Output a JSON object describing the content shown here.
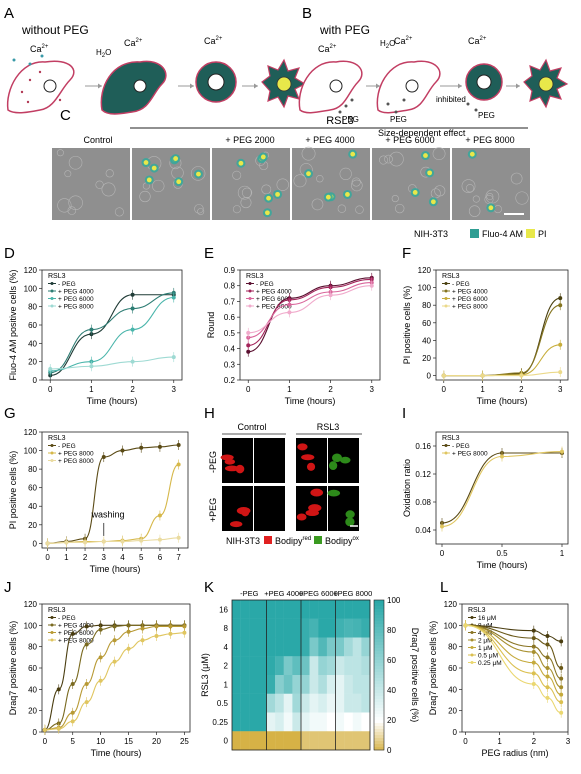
{
  "panel_letters": [
    "A",
    "B",
    "C",
    "D",
    "E",
    "F",
    "G",
    "H",
    "I",
    "J",
    "K",
    "L"
  ],
  "panelA": {
    "title": "without PEG",
    "ca": "Ca",
    "ca_sup": "2+",
    "h2o": "H",
    "h2o_sub": "2",
    "h2o_o": "O"
  },
  "panelB": {
    "title": "with PEG",
    "inhibited": "inhibited",
    "size_effect": "Size-dependent effect",
    "peg_label": "PEG"
  },
  "panelC": {
    "group": "RSL3",
    "columns": [
      "Control",
      "",
      "+ PEG 2000",
      "+ PEG 4000",
      "+ PEG 6000",
      "+ PEG 8000"
    ],
    "legend_cell": "NIH-3T3",
    "legend_dye1": "Fluo-4 AM",
    "legend_dye2": "PI",
    "color_fluo": "#3aa79b",
    "color_pi": "#e0e04a"
  },
  "panelH": {
    "col_control": "Control",
    "col_rsl3": "RSL3",
    "row1": "-PEG",
    "row2": "+PEG",
    "legend_cell": "NIH-3T3",
    "legend_red": "Bodipy",
    "legend_red_sup": "red",
    "legend_green": "Bodipy",
    "legend_green_sup": "ox"
  },
  "chart_data": [
    {
      "id": "D",
      "type": "line",
      "title": "RSL3",
      "ylabel": "Fluo-4 AM positive cells (%)",
      "xlabel": "Time (hours)",
      "x": [
        0,
        1,
        2,
        3
      ],
      "xlim": [
        -0.2,
        3.2
      ],
      "ylim": [
        0,
        120
      ],
      "yticks": [
        0,
        20,
        40,
        60,
        80,
        100,
        120
      ],
      "xticks": [
        0,
        1,
        2,
        3
      ],
      "series": [
        {
          "name": "- PEG",
          "color": "#1f3b36",
          "values": [
            5,
            50,
            93,
            93
          ]
        },
        {
          "name": "+ PEG 4000",
          "color": "#2e7d74",
          "values": [
            8,
            55,
            78,
            95
          ]
        },
        {
          "name": "+ PEG 6000",
          "color": "#4ab5ab",
          "values": [
            10,
            20,
            55,
            90
          ]
        },
        {
          "name": "+ PEG 8000",
          "color": "#9edad3",
          "values": [
            12,
            15,
            20,
            25
          ]
        }
      ]
    },
    {
      "id": "E",
      "type": "line",
      "title": "RSL3",
      "ylabel": "Round",
      "xlabel": "Time (hours)",
      "x": [
        0,
        1,
        2,
        3
      ],
      "xlim": [
        -0.2,
        3.2
      ],
      "ylim": [
        0.2,
        0.9
      ],
      "yticks": [
        0.2,
        0.3,
        0.4,
        0.5,
        0.6,
        0.7,
        0.8,
        0.9
      ],
      "xticks": [
        0,
        1,
        2,
        3
      ],
      "series": [
        {
          "name": "- PEG",
          "color": "#5a1030",
          "values": [
            0.38,
            0.72,
            0.8,
            0.85
          ]
        },
        {
          "name": "+ PEG 4000",
          "color": "#a3245a",
          "values": [
            0.42,
            0.71,
            0.79,
            0.84
          ]
        },
        {
          "name": "+ PEG 6000",
          "color": "#d9669b",
          "values": [
            0.47,
            0.68,
            0.76,
            0.82
          ]
        },
        {
          "name": "+ PEG 8000",
          "color": "#f0aacb",
          "values": [
            0.5,
            0.63,
            0.74,
            0.8
          ]
        }
      ]
    },
    {
      "id": "F",
      "type": "line",
      "title": "RSL3",
      "ylabel": "PI positive cells (%)",
      "xlabel": "Time (hours)",
      "x": [
        0,
        1,
        2,
        3
      ],
      "xlim": [
        -0.2,
        3.2
      ],
      "ylim": [
        -5,
        120
      ],
      "yticks": [
        0,
        20,
        40,
        60,
        80,
        100,
        120
      ],
      "xticks": [
        0,
        1,
        2,
        3
      ],
      "series": [
        {
          "name": "- PEG",
          "color": "#4a4010",
          "values": [
            0,
            0,
            2,
            88
          ]
        },
        {
          "name": "+ PEG 4000",
          "color": "#857520",
          "values": [
            0,
            0,
            3,
            80
          ]
        },
        {
          "name": "+ PEG 6000",
          "color": "#c7ad3a",
          "values": [
            0,
            0,
            1,
            35
          ]
        },
        {
          "name": "+ PEG 8000",
          "color": "#ebd98a",
          "values": [
            0,
            0,
            0,
            4
          ]
        }
      ]
    },
    {
      "id": "G",
      "type": "line",
      "title": "RSL3",
      "ylabel": "PI positive cells (%)",
      "xlabel": "Time (hours)",
      "annotation": "washing",
      "x": [
        0,
        1,
        2,
        3,
        4,
        5,
        6,
        7
      ],
      "xlim": [
        -0.3,
        7.5
      ],
      "ylim": [
        -5,
        120
      ],
      "yticks": [
        0,
        20,
        40,
        60,
        80,
        100,
        120
      ],
      "xticks": [
        0,
        1,
        2,
        3,
        4,
        5,
        6,
        7
      ],
      "series": [
        {
          "name": "- PEG",
          "color": "#5a4a15",
          "values": [
            0,
            2,
            5,
            93,
            100,
            103,
            104,
            106
          ]
        },
        {
          "name": "+ PEG 8000",
          "color": "#d6b84a",
          "values": [
            0,
            1,
            2,
            2,
            3,
            5,
            30,
            85
          ]
        },
        {
          "name": "+ PEG 8000",
          "color": "#eadba0",
          "values": [
            0,
            1,
            1,
            2,
            2,
            3,
            4,
            6
          ]
        }
      ]
    },
    {
      "id": "I",
      "type": "line",
      "title": "RSL3",
      "ylabel": "Oxidation ratio",
      "xlabel": "Time (hours)",
      "x": [
        0,
        0.5,
        1
      ],
      "xlim": [
        -0.05,
        1.05
      ],
      "ylim": [
        0.02,
        0.18
      ],
      "yticks": [
        0.04,
        0.08,
        0.12,
        0.16
      ],
      "xticks": [
        0,
        0.5,
        1
      ],
      "series": [
        {
          "name": "- PEG",
          "color": "#5a4a15",
          "values": [
            0.05,
            0.15,
            0.15
          ]
        },
        {
          "name": "+ PEG 8000",
          "color": "#e0c660",
          "values": [
            0.045,
            0.145,
            0.152
          ]
        }
      ]
    },
    {
      "id": "J",
      "type": "line",
      "title": "RSL3",
      "ylabel": "Draq7 positive cells (%)",
      "xlabel": "Time (hours)",
      "x": [
        0,
        2.5,
        5,
        7.5,
        10,
        12.5,
        15,
        17.5,
        20,
        22.5,
        25
      ],
      "xlim": [
        -0.5,
        26
      ],
      "ylim": [
        0,
        120
      ],
      "yticks": [
        0,
        20,
        40,
        60,
        80,
        100,
        120
      ],
      "xticks": [
        0,
        5,
        10,
        15,
        20,
        25
      ],
      "series": [
        {
          "name": "- PEG",
          "color": "#4a3d10",
          "values": [
            2,
            40,
            92,
            99,
            100,
            100,
            100,
            100,
            100,
            100,
            100
          ]
        },
        {
          "name": "+ PEG 4000",
          "color": "#7a6a20",
          "values": [
            2,
            8,
            45,
            82,
            96,
            99,
            100,
            100,
            100,
            100,
            100
          ]
        },
        {
          "name": "+ PEG 6000",
          "color": "#b89a35",
          "values": [
            2,
            4,
            18,
            45,
            70,
            86,
            94,
            97,
            99,
            99,
            99
          ]
        },
        {
          "name": "+ PEG 8000",
          "color": "#e0c660",
          "values": [
            2,
            3,
            10,
            28,
            48,
            66,
            78,
            86,
            90,
            92,
            93
          ]
        }
      ]
    },
    {
      "id": "K",
      "type": "heatmap",
      "groups": [
        "-PEG",
        "+PEG 4000",
        "+PEG 6000",
        "+PEG 8000"
      ],
      "rows": [
        "16",
        "8",
        "4",
        "2",
        "1",
        "0.5",
        "0.25",
        "0"
      ],
      "ylabel": "RSL3 (μM)",
      "colorbar_label": "Draq7 positive cells (%)",
      "colorbar_ticks": [
        0,
        20,
        40,
        60,
        80,
        100
      ],
      "values": [
        [
          100,
          100,
          100,
          100,
          100,
          100,
          100,
          100,
          100,
          100,
          100,
          100,
          100,
          100,
          100,
          100
        ],
        [
          100,
          100,
          100,
          100,
          100,
          100,
          100,
          100,
          95,
          90,
          100,
          100,
          92,
          88,
          90,
          95
        ],
        [
          100,
          100,
          100,
          100,
          100,
          100,
          100,
          100,
          95,
          70,
          85,
          70,
          70,
          55,
          45,
          60
        ],
        [
          100,
          100,
          100,
          100,
          98,
          90,
          70,
          80,
          75,
          40,
          60,
          55,
          40,
          45,
          45,
          50
        ],
        [
          100,
          100,
          100,
          100,
          95,
          65,
          75,
          60,
          60,
          40,
          50,
          35,
          30,
          40,
          45,
          45
        ],
        [
          100,
          100,
          100,
          100,
          55,
          45,
          30,
          55,
          40,
          30,
          35,
          28,
          30,
          40,
          40,
          45
        ],
        [
          100,
          100,
          100,
          100,
          30,
          35,
          25,
          40,
          30,
          25,
          25,
          20,
          25,
          20,
          25,
          20
        ],
        [
          0,
          0,
          0,
          0,
          0,
          0,
          0,
          0,
          5,
          5,
          5,
          5,
          5,
          5,
          5,
          5
        ]
      ]
    },
    {
      "id": "L",
      "type": "line",
      "title": "RSL3",
      "ylabel": "Draq7 positive cells (%)",
      "xlabel": "PEG radius (nm)",
      "x": [
        0,
        2,
        2.4,
        2.8
      ],
      "xlim": [
        -0.1,
        3.0
      ],
      "ylim": [
        0,
        120
      ],
      "yticks": [
        0,
        20,
        40,
        60,
        80,
        100,
        120
      ],
      "xticks": [
        0,
        1,
        2,
        3
      ],
      "series": [
        {
          "name": "16 μM",
          "color": "#4a3d10",
          "values": [
            100,
            95,
            90,
            85
          ]
        },
        {
          "name": "8 μM",
          "color": "#6a5818",
          "values": [
            100,
            88,
            82,
            60
          ]
        },
        {
          "name": "4 μM",
          "color": "#8a7525",
          "values": [
            100,
            80,
            70,
            50
          ]
        },
        {
          "name": "2 μM",
          "color": "#a8902f",
          "values": [
            100,
            75,
            60,
            42
          ]
        },
        {
          "name": "1 μM",
          "color": "#c5aa3c",
          "values": [
            100,
            65,
            52,
            35
          ]
        },
        {
          "name": "0.5 μM",
          "color": "#dbc050",
          "values": [
            100,
            55,
            42,
            28
          ]
        },
        {
          "name": "0.25 μM",
          "color": "#ead770",
          "values": [
            100,
            45,
            32,
            18
          ]
        }
      ]
    }
  ]
}
